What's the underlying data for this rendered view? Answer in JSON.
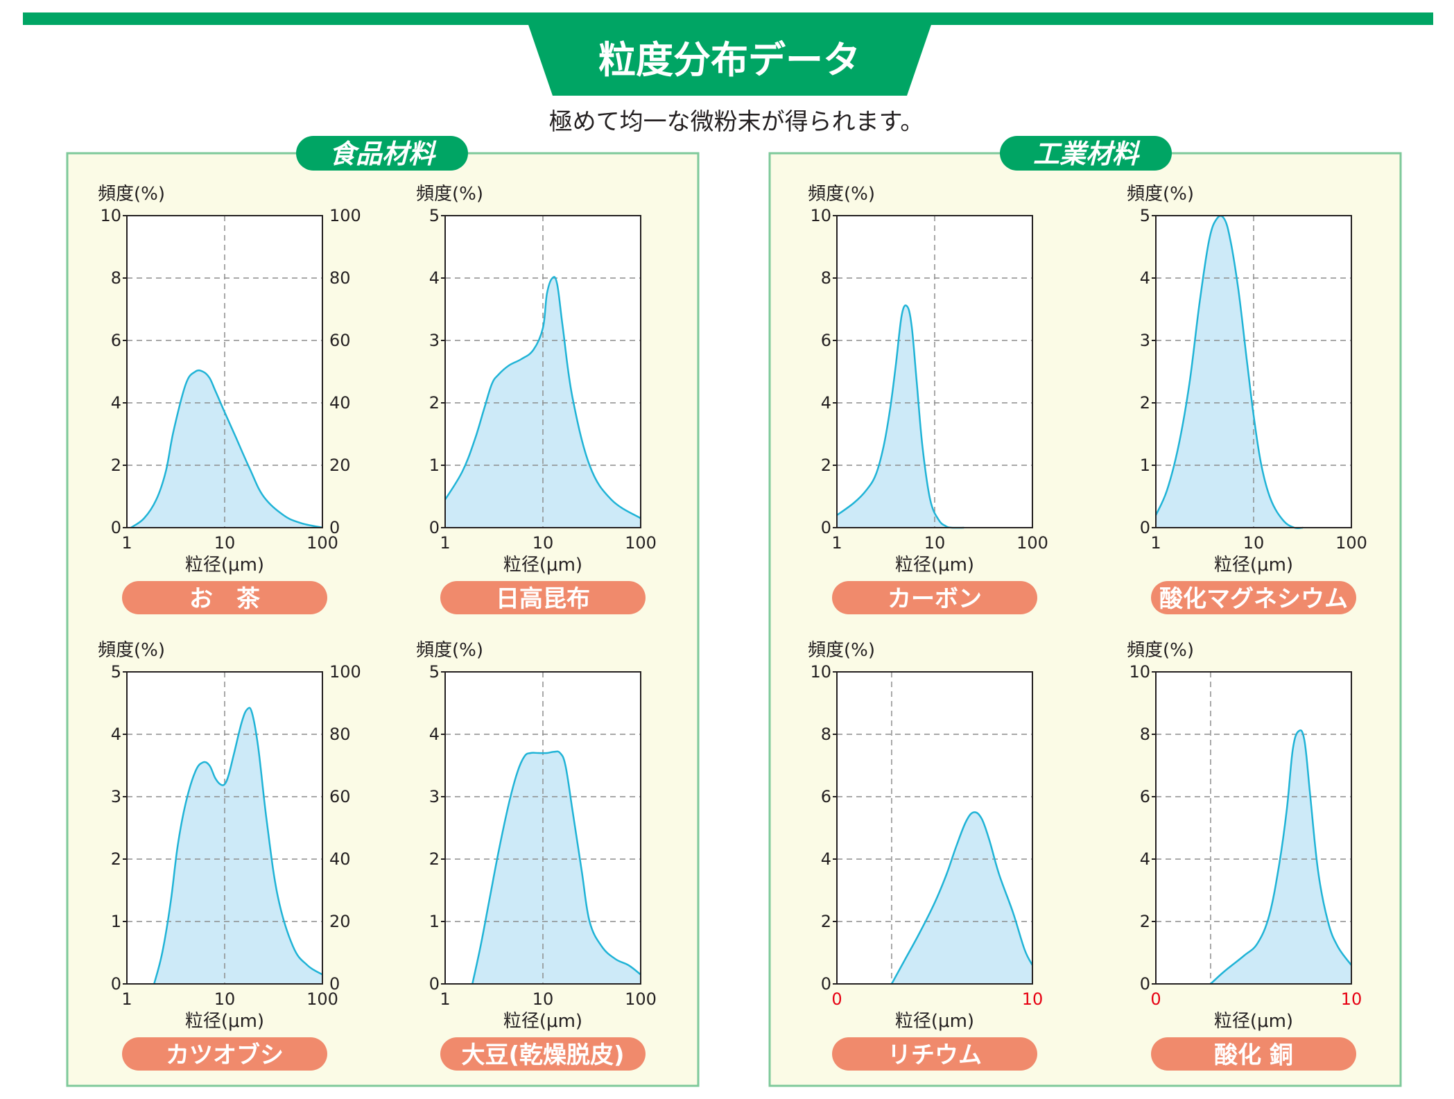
{
  "header": {
    "title": "粒度分布データ",
    "subtitle": "極めて均一な微粉末が得られます。"
  },
  "colors": {
    "brand_green": "#00a564",
    "panel_bg": "#fbfbe6",
    "panel_border": "#7ec99a",
    "pill": "#f08a6c",
    "curve_stroke": "#1fb3d6",
    "curve_fill": "#cdeaf8",
    "zero_ten_red": "#e60012"
  },
  "sections": [
    {
      "label": "食品材料"
    },
    {
      "label": "工業材料"
    }
  ],
  "chart_data": [
    {
      "type": "area",
      "name": "お　茶",
      "ylabel": "頻度(%)",
      "xlabel": "粒径(μm)",
      "xscale": "log",
      "xlim": [
        1,
        100
      ],
      "xticks": [
        "1",
        "10",
        "100"
      ],
      "ylim": [
        0,
        10
      ],
      "yticks": [
        "0",
        "2",
        "4",
        "6",
        "8",
        "10"
      ],
      "y2ticks": [
        "0",
        "20",
        "40",
        "60",
        "80",
        "100"
      ],
      "grid_y": [
        2,
        4,
        6,
        8
      ],
      "vline_x": 10,
      "series": [
        {
          "name": "頻度",
          "x": [
            1.1,
            1.5,
            2.0,
            2.5,
            3.0,
            4.0,
            5.0,
            6.0,
            7.0,
            8.0,
            10.0,
            13.0,
            18.0,
            25.0,
            40.0,
            60.0,
            100.0
          ],
          "y": [
            0.0,
            0.3,
            0.9,
            1.8,
            3.1,
            4.6,
            5.0,
            5.0,
            4.8,
            4.4,
            3.7,
            2.9,
            1.9,
            1.0,
            0.4,
            0.15,
            0.0
          ]
        }
      ]
    },
    {
      "type": "area",
      "name": "日高昆布",
      "ylabel": "頻度(%)",
      "xlabel": "粒径(μm)",
      "xscale": "log",
      "xlim": [
        1,
        100
      ],
      "xticks": [
        "1",
        "10",
        "100"
      ],
      "ylim": [
        0,
        5
      ],
      "yticks": [
        "0",
        "1",
        "2",
        "3",
        "4",
        "5"
      ],
      "grid_y": [
        1,
        2,
        3,
        4
      ],
      "vline_x": 10,
      "series": [
        {
          "name": "頻度",
          "x": [
            1.0,
            1.5,
            2.0,
            2.5,
            3.0,
            3.5,
            4.5,
            6.0,
            8.0,
            10.0,
            11.0,
            12.5,
            14.0,
            16.0,
            20.0,
            30.0,
            50.0,
            100.0
          ],
          "y": [
            0.45,
            0.9,
            1.4,
            1.9,
            2.3,
            2.45,
            2.6,
            2.7,
            2.85,
            3.2,
            3.75,
            4.0,
            3.9,
            3.2,
            2.1,
            1.0,
            0.45,
            0.15
          ]
        }
      ]
    },
    {
      "type": "area",
      "name": "カーボン",
      "ylabel": "頻度(%)",
      "xlabel": "粒径(μm)",
      "xscale": "log",
      "xlim": [
        1,
        100
      ],
      "xticks": [
        "1",
        "10",
        "100"
      ],
      "ylim": [
        0,
        10
      ],
      "yticks": [
        "0",
        "2",
        "4",
        "6",
        "8",
        "10"
      ],
      "grid_y": [
        2,
        4,
        6,
        8
      ],
      "vline_x": 10,
      "series": [
        {
          "name": "頻度",
          "x": [
            1.0,
            1.5,
            2.0,
            2.5,
            3.0,
            3.5,
            4.0,
            4.6,
            5.2,
            5.8,
            6.5,
            7.5,
            9.0,
            11.0,
            13.0,
            15.0,
            20.0
          ],
          "y": [
            0.4,
            0.8,
            1.2,
            1.7,
            2.6,
            3.8,
            5.2,
            6.8,
            7.1,
            6.5,
            4.8,
            2.6,
            0.9,
            0.25,
            0.05,
            0.0,
            0.0
          ]
        }
      ]
    },
    {
      "type": "area",
      "name": "酸化マグネシウム",
      "ylabel": "頻度(%)",
      "xlabel": "粒径(μm)",
      "xscale": "log",
      "xlim": [
        1,
        100
      ],
      "xticks": [
        "1",
        "10",
        "100"
      ],
      "ylim": [
        0,
        5
      ],
      "yticks": [
        "0",
        "1",
        "2",
        "3",
        "4",
        "5"
      ],
      "grid_y": [
        1,
        2,
        3,
        4
      ],
      "vline_x": 10,
      "series": [
        {
          "name": "頻度",
          "x": [
            1.0,
            1.3,
            1.7,
            2.2,
            2.8,
            3.5,
            4.2,
            5.0,
            5.8,
            7.0,
            8.5,
            10.0,
            12.0,
            15.0,
            20.0,
            26.0,
            32.0
          ],
          "y": [
            0.2,
            0.6,
            1.3,
            2.3,
            3.6,
            4.6,
            4.95,
            4.95,
            4.6,
            3.8,
            2.7,
            1.8,
            1.0,
            0.45,
            0.12,
            0.0,
            0.0
          ]
        }
      ]
    },
    {
      "type": "area",
      "name": "カツオブシ",
      "ylabel": "頻度(%)",
      "xlabel": "粒径(μm)",
      "xscale": "log",
      "xlim": [
        1,
        100
      ],
      "xticks": [
        "1",
        "10",
        "100"
      ],
      "ylim": [
        0,
        5
      ],
      "yticks": [
        "0",
        "1",
        "2",
        "3",
        "4",
        "5"
      ],
      "y2ticks": [
        "0",
        "20",
        "40",
        "60",
        "80",
        "100"
      ],
      "grid_y": [
        1,
        2,
        3,
        4
      ],
      "vline_x": 10,
      "series": [
        {
          "name": "頻度",
          "x": [
            1.9,
            2.3,
            2.8,
            3.3,
            4.0,
            5.0,
            6.0,
            7.0,
            8.0,
            9.0,
            10.0,
            11.0,
            12.5,
            15.0,
            17.0,
            19.0,
            22.0,
            27.0,
            35.0,
            50.0,
            70.0,
            100.0
          ],
          "y": [
            0.0,
            0.5,
            1.3,
            2.2,
            2.9,
            3.4,
            3.55,
            3.5,
            3.3,
            3.2,
            3.2,
            3.35,
            3.7,
            4.2,
            4.4,
            4.35,
            3.8,
            2.6,
            1.4,
            0.6,
            0.3,
            0.15
          ]
        }
      ]
    },
    {
      "type": "area",
      "name": "大豆(乾燥脱皮)",
      "ylabel": "頻度(%)",
      "xlabel": "粒径(μm)",
      "xscale": "log",
      "xlim": [
        1,
        100
      ],
      "xticks": [
        "1",
        "10",
        "100"
      ],
      "ylim": [
        0,
        5
      ],
      "yticks": [
        "0",
        "1",
        "2",
        "3",
        "4",
        "5"
      ],
      "grid_y": [
        1,
        2,
        3,
        4
      ],
      "vline_x": 10,
      "series": [
        {
          "name": "頻度",
          "x": [
            1.9,
            2.3,
            2.8,
            3.5,
            4.5,
            5.5,
            6.5,
            7.5,
            9.0,
            11.0,
            13.0,
            15.0,
            17.0,
            20.0,
            25.0,
            30.0,
            40.0,
            55.0,
            75.0,
            100.0
          ],
          "y": [
            0.0,
            0.6,
            1.3,
            2.1,
            2.9,
            3.4,
            3.65,
            3.7,
            3.7,
            3.7,
            3.72,
            3.7,
            3.5,
            2.8,
            1.8,
            1.0,
            0.6,
            0.4,
            0.3,
            0.15
          ]
        }
      ]
    },
    {
      "type": "area",
      "name": "リチウム",
      "ylabel": "頻度(%)",
      "xlabel": "粒径(μm)",
      "xscale": "linear",
      "xlim": [
        0,
        10
      ],
      "xticks": [
        "0",
        "10"
      ],
      "ylim": [
        0,
        10
      ],
      "yticks": [
        "0",
        "2",
        "4",
        "6",
        "8",
        "10"
      ],
      "grid_y": [
        2,
        4,
        6,
        8
      ],
      "vline_x": 2.8,
      "series": [
        {
          "name": "頻度",
          "x": [
            2.8,
            3.5,
            4.2,
            5.0,
            5.6,
            6.1,
            6.6,
            7.0,
            7.4,
            7.8,
            8.3,
            9.0,
            9.6,
            10.0
          ],
          "y": [
            0.0,
            0.8,
            1.6,
            2.6,
            3.5,
            4.4,
            5.2,
            5.5,
            5.3,
            4.6,
            3.5,
            2.3,
            1.1,
            0.6
          ]
        }
      ]
    },
    {
      "type": "area",
      "name": "酸化 銅",
      "ylabel": "頻度(%)",
      "xlabel": "粒径(μm)",
      "xscale": "linear",
      "xlim": [
        0,
        10
      ],
      "xticks": [
        "0",
        "10"
      ],
      "ylim": [
        0,
        10
      ],
      "yticks": [
        "0",
        "2",
        "4",
        "6",
        "8",
        "10"
      ],
      "grid_y": [
        2,
        4,
        6,
        8
      ],
      "vline_x": 2.8,
      "series": [
        {
          "name": "頻度",
          "x": [
            2.8,
            3.5,
            4.5,
            5.2,
            5.8,
            6.3,
            6.7,
            7.0,
            7.3,
            7.6,
            7.9,
            8.3,
            8.8,
            9.3,
            10.0
          ],
          "y": [
            0.0,
            0.4,
            0.9,
            1.3,
            2.2,
            3.8,
            5.6,
            7.5,
            8.1,
            7.8,
            6.0,
            3.6,
            2.0,
            1.2,
            0.6
          ]
        }
      ]
    }
  ]
}
